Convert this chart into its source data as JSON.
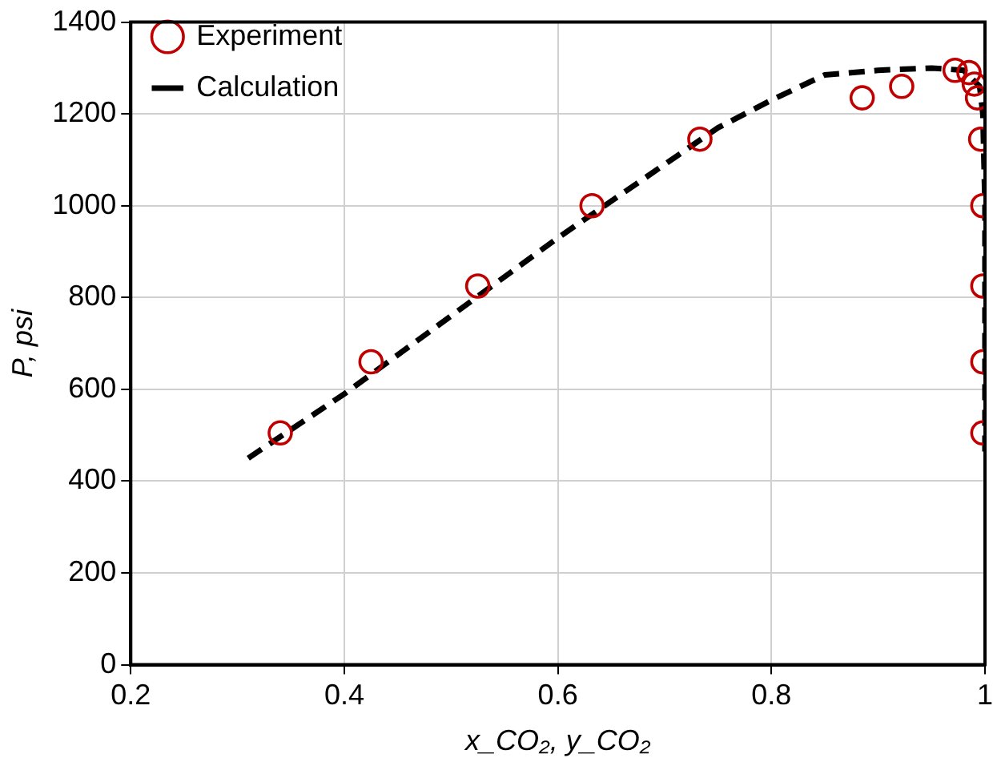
{
  "chart_data": {
    "type": "scatter",
    "xlabel": "x_CO₂, y_CO₂",
    "ylabel": "P, psi",
    "xlim": [
      0.2,
      1
    ],
    "xticks": [
      0.2,
      0.4,
      0.6,
      0.8,
      1
    ],
    "ylim": [
      0,
      1400
    ],
    "yticks": [
      0,
      200,
      400,
      600,
      800,
      1000,
      1200,
      1400
    ],
    "grid": true,
    "legend": "top left",
    "series": [
      {
        "name": "Experiment",
        "color": "#c00000",
        "marker": "circle",
        "x": [
          0.34,
          0.425,
          0.525,
          0.632,
          0.733,
          0.885,
          0.922,
          0.972,
          0.985,
          0.99,
          0.993,
          0.996,
          0.998,
          0.998,
          0.998,
          0.998
        ],
        "values": [
          505,
          660,
          825,
          1000,
          1145,
          1235,
          1260,
          1295,
          1290,
          1265,
          1235,
          1145,
          1000,
          825,
          660,
          505
        ]
      },
      {
        "name": "Calculation",
        "type": "line",
        "color": "#000000",
        "marker": "none",
        "line_style": "dashed",
        "x": [
          0.31,
          0.4,
          0.5,
          0.6,
          0.7,
          0.75,
          0.8,
          0.85,
          0.9,
          0.95,
          0.98,
          0.995,
          0.998,
          1,
          1
        ],
        "values": [
          450,
          590,
          760,
          930,
          1090,
          1170,
          1230,
          1285,
          1295,
          1300,
          1295,
          1260,
          1200,
          1000,
          450
        ]
      }
    ]
  }
}
